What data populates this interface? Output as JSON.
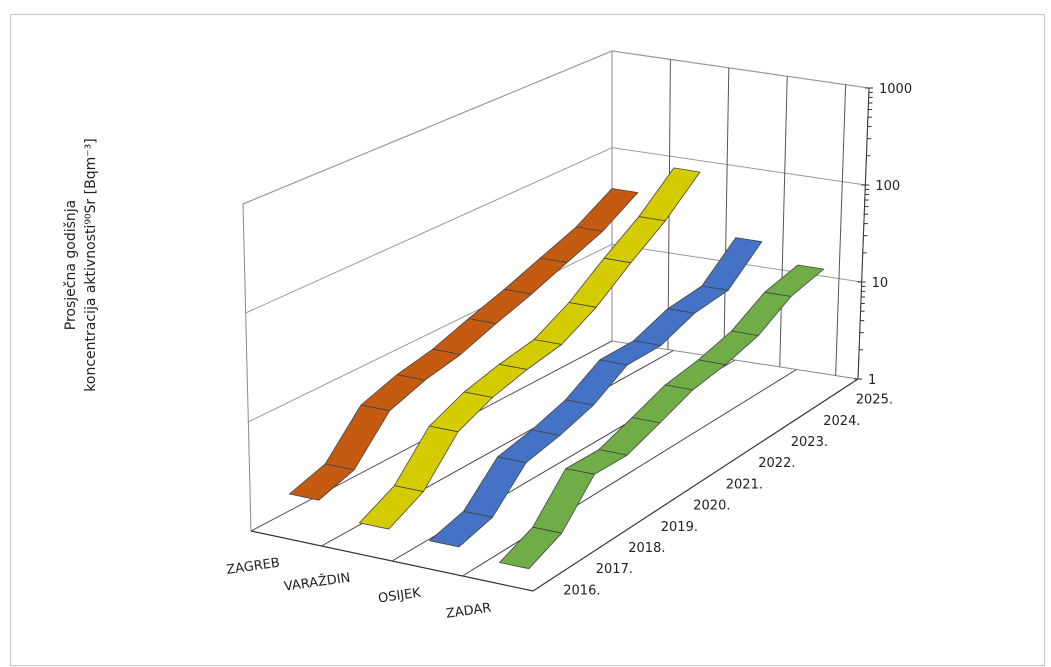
{
  "chart_data": {
    "type": "3d-line",
    "ylabel_line1": "Prosječna godišnja",
    "ylabel_line2": "koncentracija aktivnosti⁹⁰Sr  [Bqm⁻³]",
    "yscale": "log",
    "ylim": [
      1,
      1000
    ],
    "yticks": [
      "1",
      "10",
      "100",
      "1000"
    ],
    "grid": true,
    "x": [
      "2016.",
      "2017.",
      "2018.",
      "2019.",
      "2020.",
      "2021.",
      "2022.",
      "2023.",
      "2024.",
      "2025."
    ],
    "series": [
      {
        "name": "ZAGREB",
        "color": "#c55a11",
        "values": [
          2.6,
          3.5,
          10.5,
          13.5,
          15,
          19,
          23,
          29,
          36,
          53
        ]
      },
      {
        "name": "VARAŽDIN",
        "color": "#d4cc00",
        "values": [
          1.7,
          2.8,
          8.5,
          12,
          14,
          15,
          22,
          38,
          60,
          110
        ]
      },
      {
        "name": "OSIJEK",
        "color": "#4472c4",
        "values": [
          1.55,
          2.0,
          5.2,
          6.0,
          7.5,
          12,
          11,
          14,
          14,
          26
        ]
      },
      {
        "name": "ZADAR",
        "color": "#70ad47",
        "values": [
          1.25,
          1.9,
          5.5,
          5.0,
          6.5,
          8.5,
          9.0,
          10.5,
          15.5,
          17
        ]
      }
    ]
  }
}
